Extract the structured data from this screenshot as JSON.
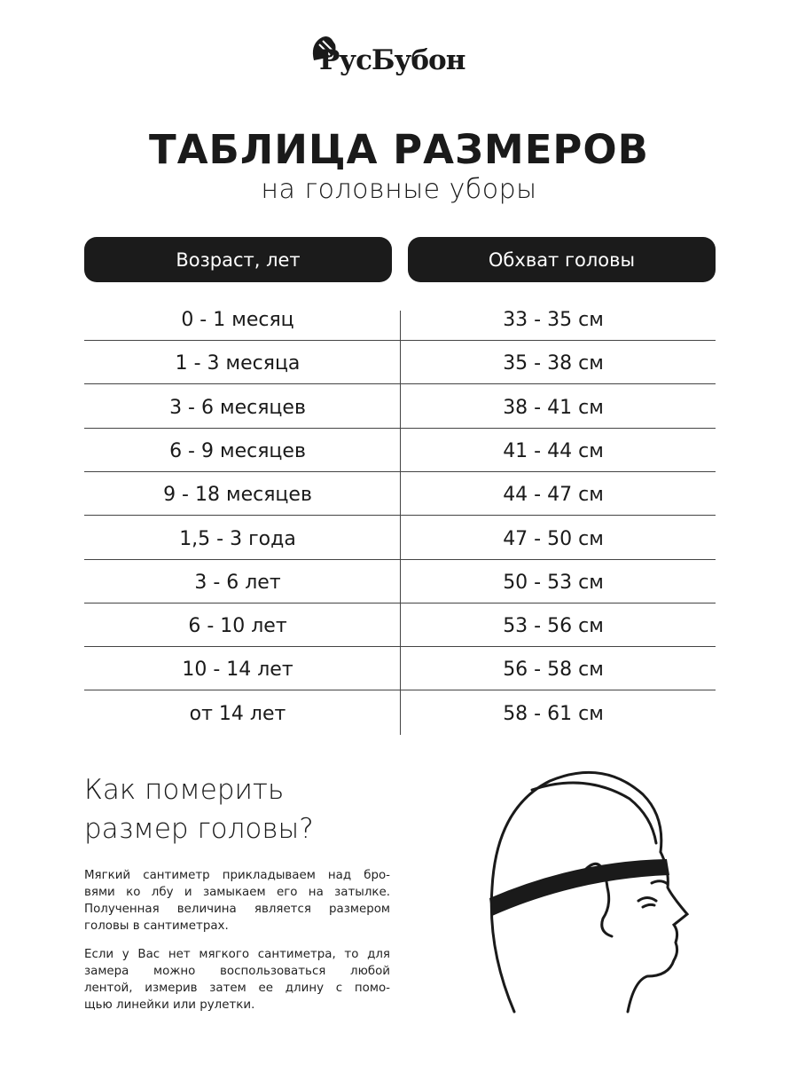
{
  "brand": {
    "logo_text": "РусБубон"
  },
  "title": "ТАБЛИЦА РАЗМЕРОВ",
  "subtitle": "на головные уборы",
  "table": {
    "headers": [
      "Возраст, лет",
      "Обхват головы"
    ],
    "rows": [
      [
        "0 - 1 месяц",
        "33 - 35 см"
      ],
      [
        "1 - 3 месяца",
        "35 - 38 см"
      ],
      [
        "3 - 6 месяцев",
        "38 - 41 см"
      ],
      [
        "6 - 9 месяцев",
        "41 - 44 см"
      ],
      [
        "9 - 18 месяцев",
        "44 - 47 см"
      ],
      [
        "1,5 - 3 года",
        "47 - 50 см"
      ],
      [
        "3 - 6 лет",
        "50 - 53 см"
      ],
      [
        "6 - 10 лет",
        "53 - 56 см"
      ],
      [
        "10 - 14 лет",
        "56 - 58 см"
      ],
      [
        "от 14 лет",
        "58 - 61 см"
      ]
    ]
  },
  "howto": {
    "heading": [
      "Как померить",
      "размер головы?"
    ],
    "paragraph1": [
      "Мягкий сантиметр прикладываем над бро-",
      "вями ко лбу и замыкаем его на затылке.",
      "Полученная величина является размером",
      "головы в сантиметрах."
    ],
    "paragraph2": [
      "Если у Вас нет мягкого сантиметра, то для",
      "замера можно воспользоваться любой",
      "лентой, измерив затем ее длину с помо-",
      "щью линейки или рулетки."
    ]
  }
}
